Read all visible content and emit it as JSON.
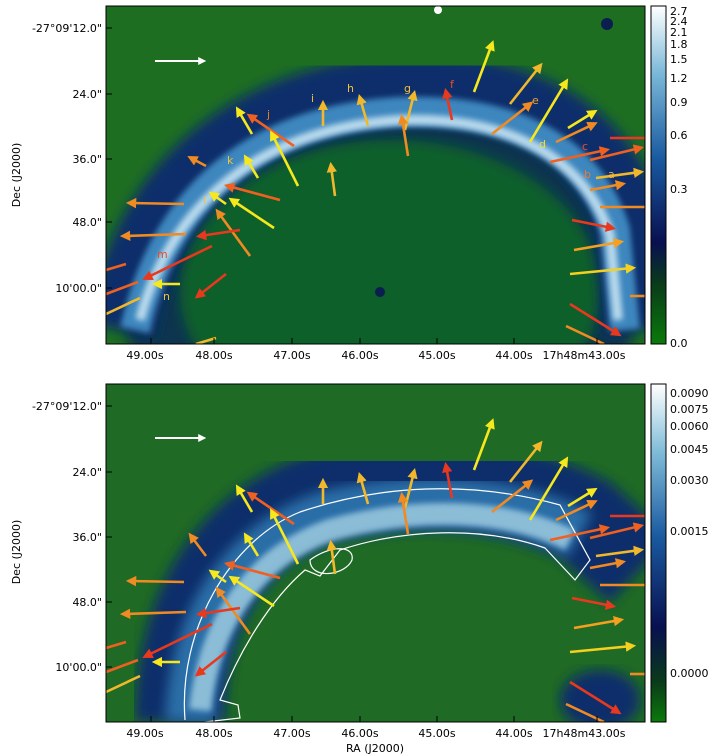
{
  "top_panel": {
    "ylabel": "Dec (J2000)",
    "dec_ticks": [
      "-27°09'12.0\"",
      "24.0\"",
      "36.0\"",
      "48.0\"",
      "10'00.0\""
    ],
    "colorbar_ticks": [
      "2.7",
      "2.4",
      "2.1",
      "1.8",
      "1.5",
      "1.2",
      "0.9",
      "0.6",
      "0.3",
      "0.0"
    ],
    "labels": [
      {
        "text": "a",
        "color": "#f2b84b"
      },
      {
        "text": "b",
        "color": "#f07a2c"
      },
      {
        "text": "c",
        "color": "#ef4a28"
      },
      {
        "text": "d",
        "color": "#f1df33"
      },
      {
        "text": "e",
        "color": "#f0a22c"
      },
      {
        "text": "f",
        "color": "#ef4a28"
      },
      {
        "text": "g",
        "color": "#f2c23a"
      },
      {
        "text": "h",
        "color": "#f2c23a"
      },
      {
        "text": "i",
        "color": "#f2c23a"
      },
      {
        "text": "j",
        "color": "#f07a2c"
      },
      {
        "text": "k",
        "color": "#f2c23a"
      },
      {
        "text": "l",
        "color": "#f2c23a"
      },
      {
        "text": "m",
        "color": "#ef4a28"
      },
      {
        "text": "n",
        "color": "#f2c23a"
      }
    ]
  },
  "bottom_panel": {
    "ylabel": "Dec (J2000)",
    "xlabel": "RA (J2000)",
    "dec_ticks": [
      "-27°09'12.0\"",
      "24.0\"",
      "36.0\"",
      "48.0\"",
      "10'00.0\""
    ],
    "ra_ticks": [
      "49.00s",
      "48.00s",
      "47.00s",
      "46.00s",
      "45.00s",
      "44.00s",
      "17h48m43.00s"
    ],
    "colorbar_ticks": [
      "0.0090",
      "0.0075",
      "0.0060",
      "0.0045",
      "0.0030",
      "0.0015",
      "0.0000"
    ]
  },
  "colors": {
    "background_green": "#1e6e22",
    "ring_light": "#cfe8f4",
    "deep_blue": "#0a2f6a",
    "arrow_red": "#e8381e",
    "arrow_orange": "#f08a22",
    "arrow_yellow": "#f6e81c",
    "scale_arrow": "#ffffff"
  }
}
